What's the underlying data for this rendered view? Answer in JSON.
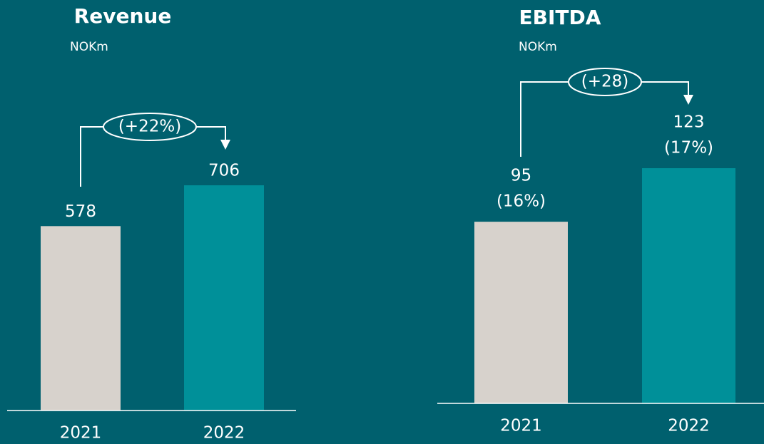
{
  "chart_data": [
    {
      "type": "bar",
      "title": "Revenue",
      "subtitle": "NOKm",
      "categories": [
        "2021",
        "2022"
      ],
      "values": [
        578,
        706
      ],
      "colors": [
        "#d7d2cc",
        "#009099"
      ],
      "annotation": "(+22%)"
    },
    {
      "type": "bar",
      "title": "EBITDA",
      "subtitle": "NOKm",
      "categories": [
        "2021",
        "2022"
      ],
      "values": [
        95,
        123
      ],
      "margin_labels": [
        "(16%)",
        "(17%)"
      ],
      "colors": [
        "#d7d2cc",
        "#009099"
      ],
      "annotation": "(+28)"
    }
  ]
}
